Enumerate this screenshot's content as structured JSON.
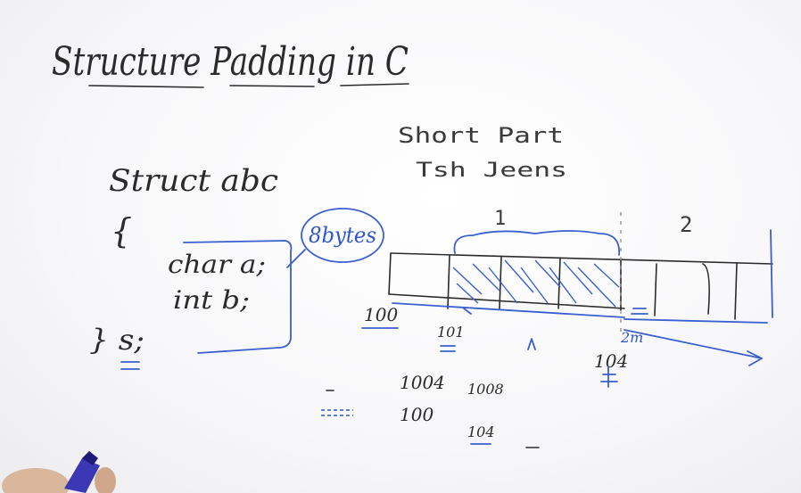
{
  "title": "Structure Padding in C",
  "top_note": {
    "line1": "Short Part",
    "line2": "Tsh Jeens"
  },
  "code": {
    "line1": "Struct abc",
    "open_brace": "{",
    "member1": "char a;",
    "member2": "int b;",
    "close": "} s;"
  },
  "bubble_label": "8bytes",
  "diagram": {
    "label_group1": "1",
    "label_group2": "2",
    "addr_start": "100",
    "addr_second": "101",
    "addr_right": "104",
    "addr_small": "2m"
  },
  "notes": {
    "line1_a": "1004",
    "line1_b": "1008",
    "line2_a": "100",
    "line2_b": "104"
  },
  "colors": {
    "ink_black": "#2b2b2b",
    "ink_blue": "#2f56c9",
    "board": "#ffffff"
  },
  "icons": {
    "marker": "marker-icon"
  }
}
